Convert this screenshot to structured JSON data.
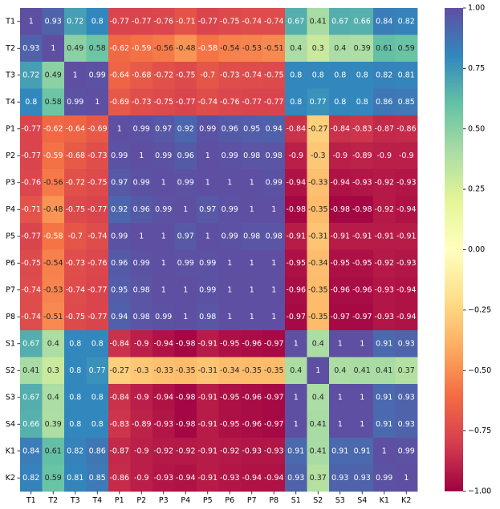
{
  "chart_data": {
    "type": "heatmap",
    "title": "",
    "xlabel": "",
    "ylabel": "",
    "colormap": "Spectral",
    "color_range": [
      -1.0,
      1.0
    ],
    "colorbar_ticks": [
      "1.00",
      "0.75",
      "0.50",
      "0.25",
      "0.00",
      "−0.25",
      "−0.50",
      "−0.75",
      "−1.00"
    ],
    "colorbar_tick_values": [
      1.0,
      0.75,
      0.5,
      0.25,
      0.0,
      -0.25,
      -0.5,
      -0.75,
      -1.0
    ],
    "rows": [
      "T1",
      "T2",
      "T3",
      "T4",
      "P1",
      "P2",
      "P3",
      "P4",
      "P5",
      "P6",
      "P7",
      "P8",
      "S1",
      "S2",
      "S3",
      "S4",
      "K1",
      "K2"
    ],
    "columns": [
      "T1",
      "T2",
      "T3",
      "T4",
      "P1",
      "P2",
      "P3",
      "P4",
      "P5",
      "P6",
      "P7",
      "P8",
      "S1",
      "S2",
      "S3",
      "S4",
      "K1",
      "K2"
    ],
    "values": [
      [
        "1",
        "0.93",
        "0.72",
        "0.8",
        "-0.77",
        "-0.77",
        "-0.76",
        "-0.71",
        "-0.77",
        "-0.75",
        "-0.74",
        "-0.74",
        "0.67",
        "0.41",
        "0.67",
        "0.66",
        "0.84",
        "0.82"
      ],
      [
        "0.93",
        "1",
        "0.49",
        "0.58",
        "-0.62",
        "-0.59",
        "-0.56",
        "-0.48",
        "-0.58",
        "-0.54",
        "-0.53",
        "-0.51",
        "0.4",
        "0.3",
        "0.4",
        "0.39",
        "0.61",
        "0.59"
      ],
      [
        "0.72",
        "0.49",
        "1",
        "0.99",
        "-0.64",
        "-0.68",
        "-0.72",
        "-0.75",
        "-0.7",
        "-0.73",
        "-0.74",
        "-0.75",
        "0.8",
        "0.8",
        "0.8",
        "0.8",
        "0.82",
        "0.81"
      ],
      [
        "0.8",
        "0.58",
        "0.99",
        "1",
        "-0.69",
        "-0.73",
        "-0.75",
        "-0.77",
        "-0.74",
        "-0.76",
        "-0.77",
        "-0.77",
        "0.8",
        "0.77",
        "0.8",
        "0.8",
        "0.86",
        "0.85"
      ],
      [
        "-0.77",
        "-0.62",
        "-0.64",
        "-0.69",
        "1",
        "0.99",
        "0.97",
        "0.92",
        "0.99",
        "0.96",
        "0.95",
        "0.94",
        "-0.84",
        "-0.27",
        "-0.84",
        "-0.83",
        "-0.87",
        "-0.86"
      ],
      [
        "-0.77",
        "-0.59",
        "-0.68",
        "-0.73",
        "0.99",
        "1",
        "0.99",
        "0.96",
        "1",
        "0.99",
        "0.98",
        "0.98",
        "-0.9",
        "-0.3",
        "-0.9",
        "-0.89",
        "-0.9",
        "-0.9"
      ],
      [
        "-0.76",
        "-0.56",
        "-0.72",
        "-0.75",
        "0.97",
        "0.99",
        "1",
        "0.99",
        "1",
        "1",
        "1",
        "0.99",
        "-0.94",
        "-0.33",
        "-0.94",
        "-0.93",
        "-0.92",
        "-0.93"
      ],
      [
        "-0.71",
        "-0.48",
        "-0.75",
        "-0.77",
        "0.92",
        "0.96",
        "0.99",
        "1",
        "0.97",
        "0.99",
        "1",
        "1",
        "-0.98",
        "-0.35",
        "-0.98",
        "-0.98",
        "-0.92",
        "-0.94"
      ],
      [
        "-0.77",
        "-0.58",
        "-0.7",
        "-0.74",
        "0.99",
        "1",
        "1",
        "0.97",
        "1",
        "0.99",
        "0.98",
        "0.98",
        "-0.91",
        "-0.31",
        "-0.91",
        "-0.91",
        "-0.91",
        "-0.91"
      ],
      [
        "-0.75",
        "-0.54",
        "-0.73",
        "-0.76",
        "0.96",
        "0.99",
        "1",
        "0.99",
        "0.99",
        "1",
        "1",
        "1",
        "-0.95",
        "-0.34",
        "-0.95",
        "-0.95",
        "-0.92",
        "-0.93"
      ],
      [
        "-0.74",
        "-0.53",
        "-0.74",
        "-0.77",
        "0.95",
        "0.98",
        "1",
        "1",
        "0.99",
        "1",
        "1",
        "1",
        "-0.96",
        "-0.35",
        "-0.96",
        "-0.96",
        "-0.93",
        "-0.94"
      ],
      [
        "-0.74",
        "-0.51",
        "-0.75",
        "-0.77",
        "0.94",
        "0.98",
        "0.99",
        "1",
        "0.98",
        "1",
        "1",
        "1",
        "-0.97",
        "-0.35",
        "-0.97",
        "-0.97",
        "-0.93",
        "-0.94"
      ],
      [
        "0.67",
        "0.4",
        "0.8",
        "0.8",
        "-0.84",
        "-0.9",
        "-0.94",
        "-0.98",
        "-0.91",
        "-0.95",
        "-0.96",
        "-0.97",
        "1",
        "0.4",
        "1",
        "1",
        "0.91",
        "0.93"
      ],
      [
        "0.41",
        "0.3",
        "0.8",
        "0.77",
        "-0.27",
        "-0.3",
        "-0.33",
        "-0.35",
        "-0.31",
        "-0.34",
        "-0.35",
        "-0.35",
        "0.4",
        "1",
        "0.4",
        "0.41",
        "0.41",
        "0.37"
      ],
      [
        "0.67",
        "0.4",
        "0.8",
        "0.8",
        "-0.84",
        "-0.9",
        "-0.94",
        "-0.98",
        "-0.91",
        "-0.95",
        "-0.96",
        "-0.97",
        "1",
        "0.4",
        "1",
        "1",
        "0.91",
        "0.93"
      ],
      [
        "0.66",
        "0.39",
        "0.8",
        "0.8",
        "-0.83",
        "-0.89",
        "-0.93",
        "-0.98",
        "-0.91",
        "-0.95",
        "-0.96",
        "-0.97",
        "1",
        "0.41",
        "1",
        "1",
        "0.91",
        "0.93"
      ],
      [
        "0.84",
        "0.61",
        "0.82",
        "0.86",
        "-0.87",
        "-0.9",
        "-0.92",
        "-0.92",
        "-0.91",
        "-0.92",
        "-0.93",
        "-0.93",
        "0.91",
        "0.41",
        "0.91",
        "0.91",
        "1",
        "0.99"
      ],
      [
        "0.82",
        "0.59",
        "0.81",
        "0.85",
        "-0.86",
        "-0.9",
        "-0.93",
        "-0.94",
        "-0.91",
        "-0.93",
        "-0.94",
        "-0.94",
        "0.93",
        "0.37",
        "0.93",
        "0.93",
        "0.99",
        "1"
      ]
    ]
  }
}
